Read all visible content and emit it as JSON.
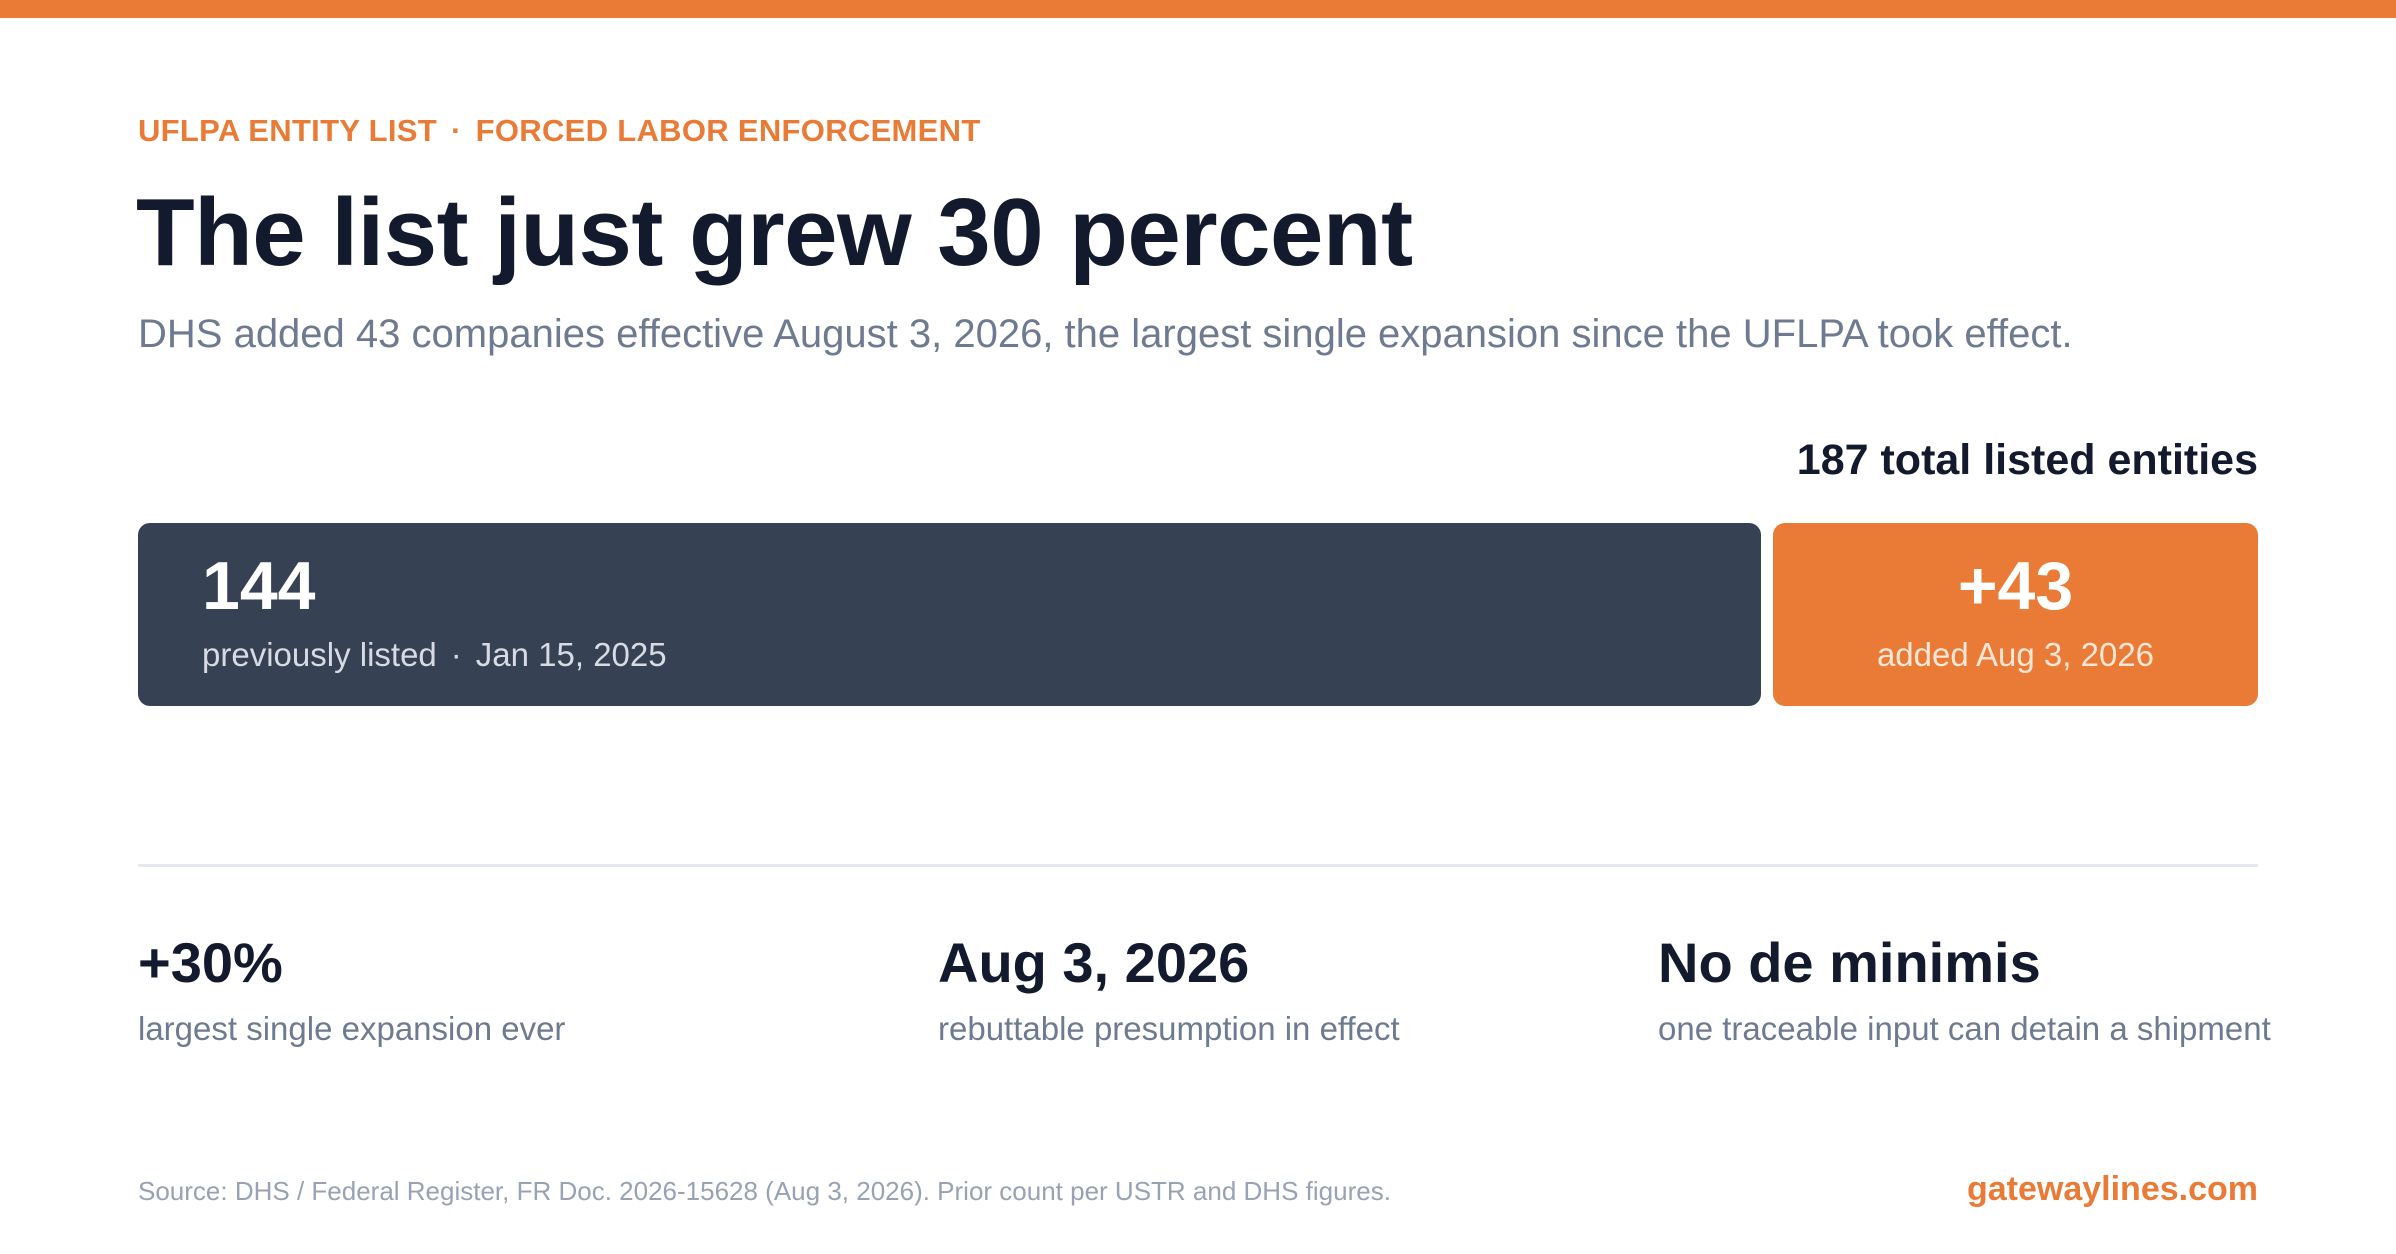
{
  "header": {
    "eyebrow_left": "UFLPA ENTITY LIST",
    "eyebrow_sep": "·",
    "eyebrow_right": "FORCED LABOR ENFORCEMENT",
    "title": "The list just grew 30 percent",
    "subtitle": "DHS added 43 companies effective August 3, 2026, the largest single expansion since the UFLPA took effect."
  },
  "colors": {
    "accent": "#e97b36",
    "prior_segment": "#364153",
    "text_dark": "#141a2e",
    "text_muted": "#6e7a90"
  },
  "chart_data": {
    "type": "bar",
    "orientation": "horizontal-stacked",
    "total": 187,
    "total_label": "187 total listed entities",
    "segments": [
      {
        "value": 144,
        "value_label": "144",
        "caption": "previously listed",
        "caption_sep": "·",
        "date": "Jan 15, 2025",
        "color": "#364153"
      },
      {
        "value": 43,
        "value_label": "+43",
        "caption": "added Aug 3, 2026",
        "color": "#e97b36"
      }
    ]
  },
  "stats": [
    {
      "big": "+30%",
      "small": "largest single expansion ever"
    },
    {
      "big": "Aug 3, 2026",
      "small": "rebuttable presumption in effect"
    },
    {
      "big": "No de minimis",
      "small": "one traceable input can detain a shipment"
    }
  ],
  "footer": {
    "source": "Source: DHS / Federal Register, FR Doc. 2026-15628 (Aug 3, 2026). Prior count per USTR and DHS figures.",
    "brand": "gatewaylines.com"
  }
}
